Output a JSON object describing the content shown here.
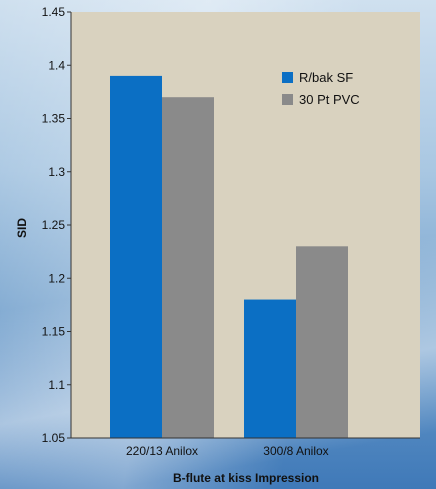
{
  "chart_data": {
    "type": "bar",
    "xlabel": "B-flute at kiss Impression",
    "ylabel": "SID",
    "ylim": [
      1.05,
      1.45
    ],
    "yticks": [
      "1.05",
      "1.1",
      "1.15",
      "1.2",
      "1.25",
      "1.3",
      "1.35",
      "1.4",
      "1.45"
    ],
    "categories": [
      "220/13 Anilox",
      "300/8 Anilox"
    ],
    "series": [
      {
        "name": "R/bak SF",
        "values": [
          1.39,
          1.18
        ],
        "color": "#0b6fc4"
      },
      {
        "name": "30 Pt PVC",
        "values": [
          1.37,
          1.23
        ],
        "color": "#8a8a8a"
      }
    ],
    "legend": "top-right",
    "grid": false
  },
  "colors": {
    "plot_background": "#d9d2bf",
    "axis": "#333333",
    "text": "#111111"
  }
}
